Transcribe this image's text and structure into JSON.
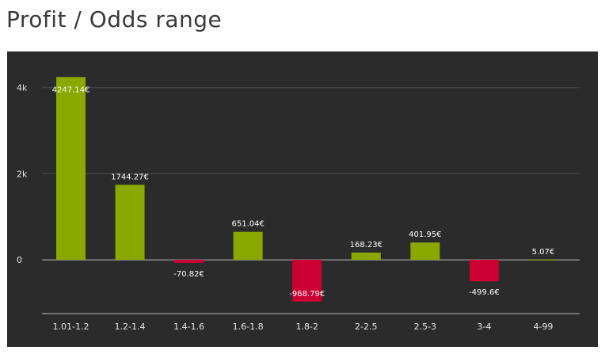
{
  "page": {
    "title": "Profit / Odds range"
  },
  "chart_data": {
    "type": "bar",
    "title": "Profit / Odds range",
    "xlabel": "",
    "ylabel": "",
    "categories": [
      "1.01-1.2",
      "1.2-1.4",
      "1.4-1.6",
      "1.6-1.8",
      "1.8-2",
      "2-2.5",
      "2.5-3",
      "3-4",
      "4-99"
    ],
    "values": [
      4247.14,
      1744.27,
      -70.82,
      651.04,
      -968.79,
      168.23,
      401.95,
      -499.6,
      5.07
    ],
    "data_labels": [
      "4247.14€",
      "1744.27€",
      "-70.82€",
      "651.04€",
      "-968.79€",
      "168.23€",
      "401.95€",
      "-499.6€",
      "5.07€"
    ],
    "ylim": [
      -1250,
      4400
    ],
    "yticks": [
      0,
      2000,
      4000
    ],
    "ytick_labels": [
      "0",
      "2k",
      "4k"
    ],
    "grid": true,
    "colors": {
      "positive": "#8aa800",
      "negative": "#cc0033",
      "background": "#2b2b2b",
      "grid": "#4a4a4a",
      "axis": "#bdbdbd"
    }
  }
}
